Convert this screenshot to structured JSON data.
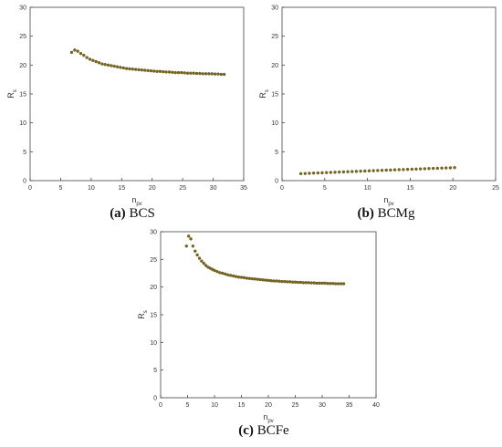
{
  "colors": {
    "marker": "#7d6a1e",
    "marker_edge": "#4f4410",
    "axis": "#444444"
  },
  "chart_data": [
    {
      "type": "scatter",
      "caption_tag": "(a)",
      "caption_text": " BCS",
      "xlabel_main": "n",
      "xlabel_sub": "pv",
      "ylabel_main": "R",
      "ylabel_sub": "s",
      "xlim": [
        0,
        35
      ],
      "ylim": [
        0,
        30
      ],
      "xticks": [
        "0",
        "5",
        "10",
        "15",
        "20",
        "25",
        "30",
        "35"
      ],
      "yticks": [
        "0",
        "5",
        "10",
        "15",
        "20",
        "25",
        "30"
      ],
      "grid": false,
      "series": [
        {
          "x": [
            6.8,
            7.3,
            7.8,
            8.3,
            8.8,
            9.3,
            9.8,
            10.3,
            10.8,
            11.3,
            11.8,
            12.3,
            12.8,
            13.3,
            13.8,
            14.3,
            14.8,
            15.3,
            15.8,
            16.3,
            16.8,
            17.3,
            17.8,
            18.3,
            18.8,
            19.3,
            19.8,
            20.3,
            20.8,
            21.3,
            21.8,
            22.3,
            22.8,
            23.3,
            23.8,
            24.3,
            24.8,
            25.3,
            25.8,
            26.3,
            26.8,
            27.3,
            27.8,
            28.3,
            28.8,
            29.3,
            29.8,
            30.3,
            30.8,
            31.3,
            31.8
          ],
          "y": [
            22.2,
            22.6,
            22.4,
            22.0,
            21.7,
            21.3,
            21.0,
            20.8,
            20.6,
            20.4,
            20.2,
            20.1,
            20.0,
            19.9,
            19.8,
            19.7,
            19.6,
            19.5,
            19.4,
            19.35,
            19.3,
            19.25,
            19.2,
            19.15,
            19.1,
            19.05,
            19.0,
            18.95,
            18.9,
            18.9,
            18.85,
            18.8,
            18.8,
            18.75,
            18.7,
            18.7,
            18.7,
            18.65,
            18.6,
            18.6,
            18.6,
            18.55,
            18.55,
            18.5,
            18.5,
            18.5,
            18.5,
            18.45,
            18.45,
            18.4,
            18.4
          ]
        }
      ]
    },
    {
      "type": "scatter",
      "caption_tag": "(b)",
      "caption_text": " BCMg",
      "xlabel_main": "n",
      "xlabel_sub": "pv",
      "ylabel_main": "R",
      "ylabel_sub": "s",
      "xlim": [
        0,
        25
      ],
      "ylim": [
        0,
        30
      ],
      "xticks": [
        "0",
        "5",
        "10",
        "15",
        "20",
        "25"
      ],
      "yticks": [
        "0",
        "5",
        "10",
        "15",
        "20",
        "25",
        "30"
      ],
      "grid": false,
      "series": [
        {
          "x": [
            2.2,
            2.7,
            3.2,
            3.7,
            4.2,
            4.7,
            5.2,
            5.7,
            6.2,
            6.7,
            7.2,
            7.7,
            8.2,
            8.7,
            9.2,
            9.7,
            10.2,
            10.7,
            11.2,
            11.7,
            12.2,
            12.7,
            13.2,
            13.7,
            14.2,
            14.7,
            15.2,
            15.7,
            16.2,
            16.7,
            17.2,
            17.7,
            18.2,
            18.7,
            19.2,
            19.7,
            20.2
          ],
          "y": [
            1.2,
            1.23,
            1.27,
            1.3,
            1.33,
            1.36,
            1.39,
            1.42,
            1.45,
            1.48,
            1.51,
            1.54,
            1.57,
            1.6,
            1.63,
            1.66,
            1.69,
            1.72,
            1.75,
            1.78,
            1.81,
            1.84,
            1.87,
            1.9,
            1.92,
            1.95,
            1.98,
            2.0,
            2.03,
            2.06,
            2.09,
            2.12,
            2.14,
            2.17,
            2.2,
            2.22,
            2.25
          ]
        }
      ]
    },
    {
      "type": "scatter",
      "caption_tag": "(c)",
      "caption_text": " BCFe",
      "xlabel_main": "n",
      "xlabel_sub": "pv",
      "ylabel_main": "R",
      "ylabel_sub": "s",
      "xlim": [
        0,
        40
      ],
      "ylim": [
        0,
        30
      ],
      "xticks": [
        "0",
        "5",
        "10",
        "15",
        "20",
        "25",
        "30",
        "35",
        "40"
      ],
      "yticks": [
        "0",
        "5",
        "10",
        "15",
        "20",
        "25",
        "30"
      ],
      "grid": false,
      "series": [
        {
          "x": [
            4.8,
            5.2,
            5.6,
            6.0,
            6.4,
            6.8,
            7.2,
            7.6,
            8.0,
            8.4,
            8.8,
            9.2,
            9.6,
            10.0,
            10.5,
            11.0,
            11.5,
            12.0,
            12.5,
            13.0,
            13.5,
            14.0,
            14.5,
            15.0,
            15.5,
            16.0,
            16.5,
            17.0,
            17.5,
            18.0,
            18.5,
            19.0,
            19.5,
            20.0,
            20.5,
            21.0,
            21.5,
            22.0,
            22.5,
            23.0,
            23.5,
            24.0,
            24.5,
            25.0,
            25.5,
            26.0,
            26.5,
            27.0,
            27.5,
            28.0,
            28.5,
            29.0,
            29.5,
            30.0,
            30.5,
            31.0,
            31.5,
            32.0,
            32.5,
            33.0,
            33.5,
            34.0
          ],
          "y": [
            27.4,
            29.2,
            28.7,
            27.4,
            26.5,
            25.8,
            25.2,
            24.7,
            24.3,
            23.9,
            23.6,
            23.4,
            23.2,
            23.0,
            22.8,
            22.6,
            22.5,
            22.35,
            22.2,
            22.1,
            22.0,
            21.9,
            21.8,
            21.75,
            21.7,
            21.6,
            21.55,
            21.5,
            21.45,
            21.4,
            21.35,
            21.3,
            21.25,
            21.2,
            21.15,
            21.1,
            21.1,
            21.05,
            21.0,
            21.0,
            20.95,
            20.95,
            20.9,
            20.9,
            20.85,
            20.85,
            20.8,
            20.8,
            20.8,
            20.75,
            20.75,
            20.7,
            20.7,
            20.7,
            20.7,
            20.65,
            20.65,
            20.65,
            20.6,
            20.6,
            20.6,
            20.6
          ]
        }
      ]
    }
  ]
}
